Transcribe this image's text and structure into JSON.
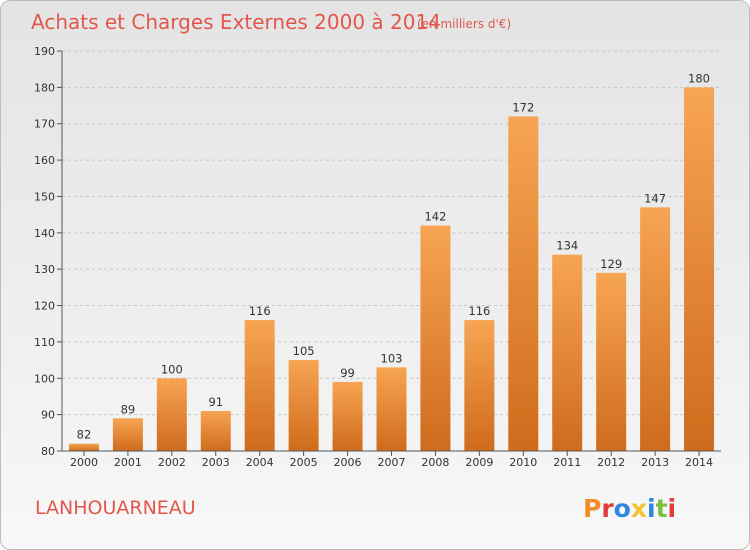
{
  "header": {
    "title": "Achats et Charges Externes 2000 à 2014",
    "unit": "(en milliers d'€)"
  },
  "footer": {
    "place": "LANHOUARNEAU",
    "logo_text": "Proxiti"
  },
  "colors": {
    "bar_light": "#f7a553",
    "bar_dark": "#cf6b1c",
    "title": "#e2574c",
    "axis": "#555555",
    "grid": "#c8c8c8",
    "logo": [
      "#f28c28",
      "#e23b3b",
      "#2e86de",
      "#f4c430",
      "#2e86de",
      "#7ac143",
      "#e23b3b"
    ]
  },
  "chart_data": {
    "type": "bar",
    "categories": [
      "2000",
      "2001",
      "2002",
      "2003",
      "2004",
      "2005",
      "2006",
      "2007",
      "2008",
      "2009",
      "2010",
      "2011",
      "2012",
      "2013",
      "2014"
    ],
    "values": [
      82,
      89,
      100,
      91,
      116,
      105,
      99,
      103,
      142,
      116,
      172,
      134,
      129,
      147,
      180
    ],
    "ylim": [
      80,
      190
    ],
    "yticks": [
      80,
      90,
      100,
      110,
      120,
      130,
      140,
      150,
      160,
      170,
      180,
      190
    ],
    "grid": "dashed-horizontal",
    "legend": "none"
  }
}
